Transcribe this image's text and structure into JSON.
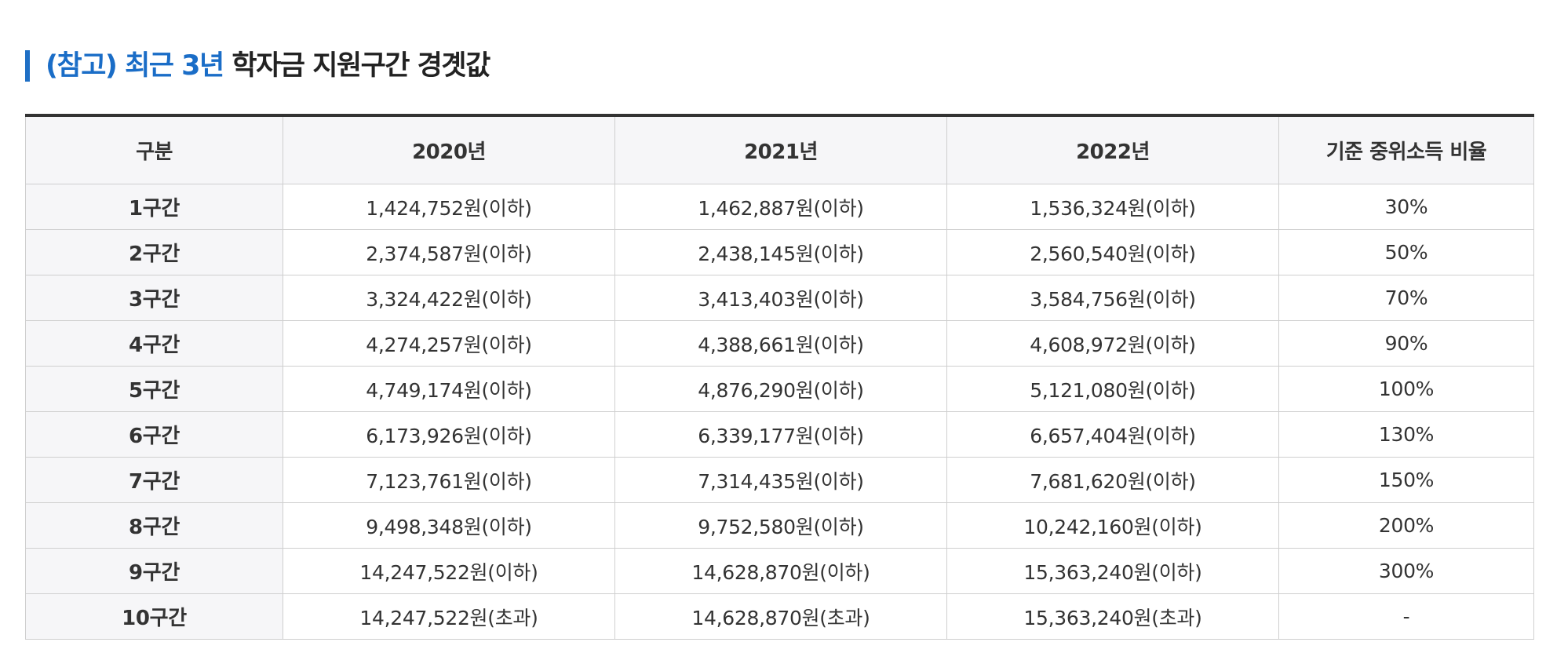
{
  "heading": {
    "accent": "(참고) 최근 3년",
    "main": "학자금 지원구간 경곗값"
  },
  "colors": {
    "accent": "#1a6dc7",
    "bar": "#1f6fc5",
    "header_bg": "#f6f6f8",
    "border": "#cfcfcf",
    "top_border": "#333333"
  },
  "table": {
    "headers": [
      "구분",
      "2020년",
      "2021년",
      "2022년",
      "기준 중위소득 비율"
    ],
    "rows": [
      [
        "1구간",
        "1,424,752원(이하)",
        "1,462,887원(이하)",
        "1,536,324원(이하)",
        "30%"
      ],
      [
        "2구간",
        "2,374,587원(이하)",
        "2,438,145원(이하)",
        "2,560,540원(이하)",
        "50%"
      ],
      [
        "3구간",
        "3,324,422원(이하)",
        "3,413,403원(이하)",
        "3,584,756원(이하)",
        "70%"
      ],
      [
        "4구간",
        "4,274,257원(이하)",
        "4,388,661원(이하)",
        "4,608,972원(이하)",
        "90%"
      ],
      [
        "5구간",
        "4,749,174원(이하)",
        "4,876,290원(이하)",
        "5,121,080원(이하)",
        "100%"
      ],
      [
        "6구간",
        "6,173,926원(이하)",
        "6,339,177원(이하)",
        "6,657,404원(이하)",
        "130%"
      ],
      [
        "7구간",
        "7,123,761원(이하)",
        "7,314,435원(이하)",
        "7,681,620원(이하)",
        "150%"
      ],
      [
        "8구간",
        "9,498,348원(이하)",
        "9,752,580원(이하)",
        "10,242,160원(이하)",
        "200%"
      ],
      [
        "9구간",
        "14,247,522원(이하)",
        "14,628,870원(이하)",
        "15,363,240원(이하)",
        "300%"
      ],
      [
        "10구간",
        "14,247,522원(초과)",
        "14,628,870원(초과)",
        "15,363,240원(초과)",
        "-"
      ]
    ]
  }
}
